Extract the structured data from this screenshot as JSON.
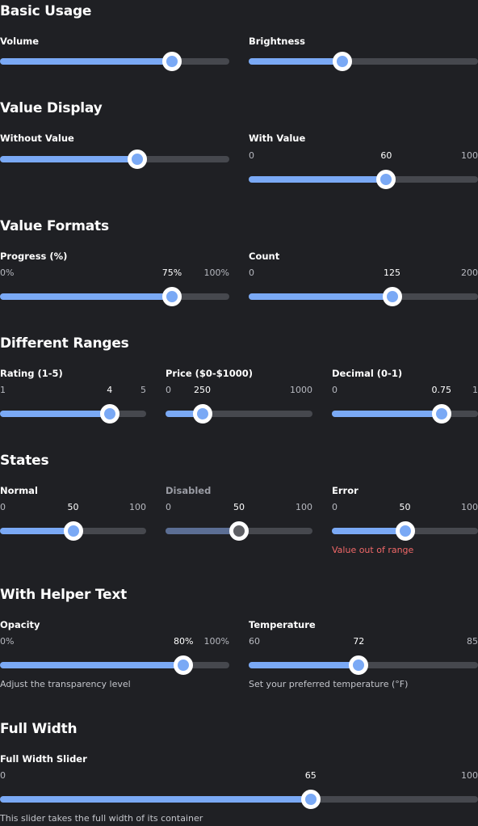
{
  "sections": {
    "basic": "Basic Usage",
    "value_display": "Value Display",
    "value_formats": "Value Formats",
    "ranges": "Different Ranges",
    "states": "States",
    "helper": "With Helper Text",
    "full_width": "Full Width"
  },
  "colors": {
    "background": "#1f2024",
    "track": "#46484e",
    "accent": "#7aa9f5",
    "disabled_fill": "#5b6e94",
    "error": "#f06868"
  },
  "sliders": {
    "volume": {
      "label": "Volume",
      "value": 75,
      "min": 0,
      "max": 100
    },
    "brightness": {
      "label": "Brightness",
      "value": 41,
      "min": 0,
      "max": 100
    },
    "without_value": {
      "label": "Without Value",
      "value": 60,
      "min": 0,
      "max": 100
    },
    "with_value": {
      "label": "With Value",
      "value": 60,
      "min": 0,
      "max": 100,
      "min_text": "0",
      "value_text": "60",
      "max_text": "100"
    },
    "progress": {
      "label": "Progress (%)",
      "value": 75,
      "min": 0,
      "max": 100,
      "min_text": "0%",
      "value_text": "75%",
      "max_text": "100%"
    },
    "count": {
      "label": "Count",
      "value": 125,
      "min": 0,
      "max": 200,
      "min_text": "0",
      "value_text": "125",
      "max_text": "200"
    },
    "rating": {
      "label": "Rating (1-5)",
      "value": 4,
      "min": 1,
      "max": 5,
      "min_text": "1",
      "value_text": "4",
      "max_text": "5"
    },
    "price": {
      "label": "Price ($0-$1000)",
      "value": 250,
      "min": 0,
      "max": 1000,
      "min_text": "0",
      "value_text": "250",
      "max_text": "1000"
    },
    "decimal": {
      "label": "Decimal (0-1)",
      "value": 0.75,
      "min": 0,
      "max": 1,
      "min_text": "0",
      "value_text": "0.75",
      "max_text": "1"
    },
    "normal": {
      "label": "Normal",
      "value": 50,
      "min": 0,
      "max": 100,
      "min_text": "0",
      "value_text": "50",
      "max_text": "100"
    },
    "disabled": {
      "label": "Disabled",
      "value": 50,
      "min": 0,
      "max": 100,
      "min_text": "0",
      "value_text": "50",
      "max_text": "100"
    },
    "error": {
      "label": "Error",
      "value": 50,
      "min": 0,
      "max": 100,
      "min_text": "0",
      "value_text": "50",
      "max_text": "100",
      "helper": "Value out of range"
    },
    "opacity": {
      "label": "Opacity",
      "value": 80,
      "min": 0,
      "max": 100,
      "min_text": "0%",
      "value_text": "80%",
      "max_text": "100%",
      "helper": "Adjust the transparency level"
    },
    "temperature": {
      "label": "Temperature",
      "value": 72,
      "min": 60,
      "max": 85,
      "min_text": "60",
      "value_text": "72",
      "max_text": "85",
      "helper": "Set your preferred temperature (°F)"
    },
    "full": {
      "label": "Full Width Slider",
      "value": 65,
      "min": 0,
      "max": 100,
      "min_text": "0",
      "value_text": "65",
      "max_text": "100",
      "helper": "This slider takes the full width of its container"
    }
  }
}
